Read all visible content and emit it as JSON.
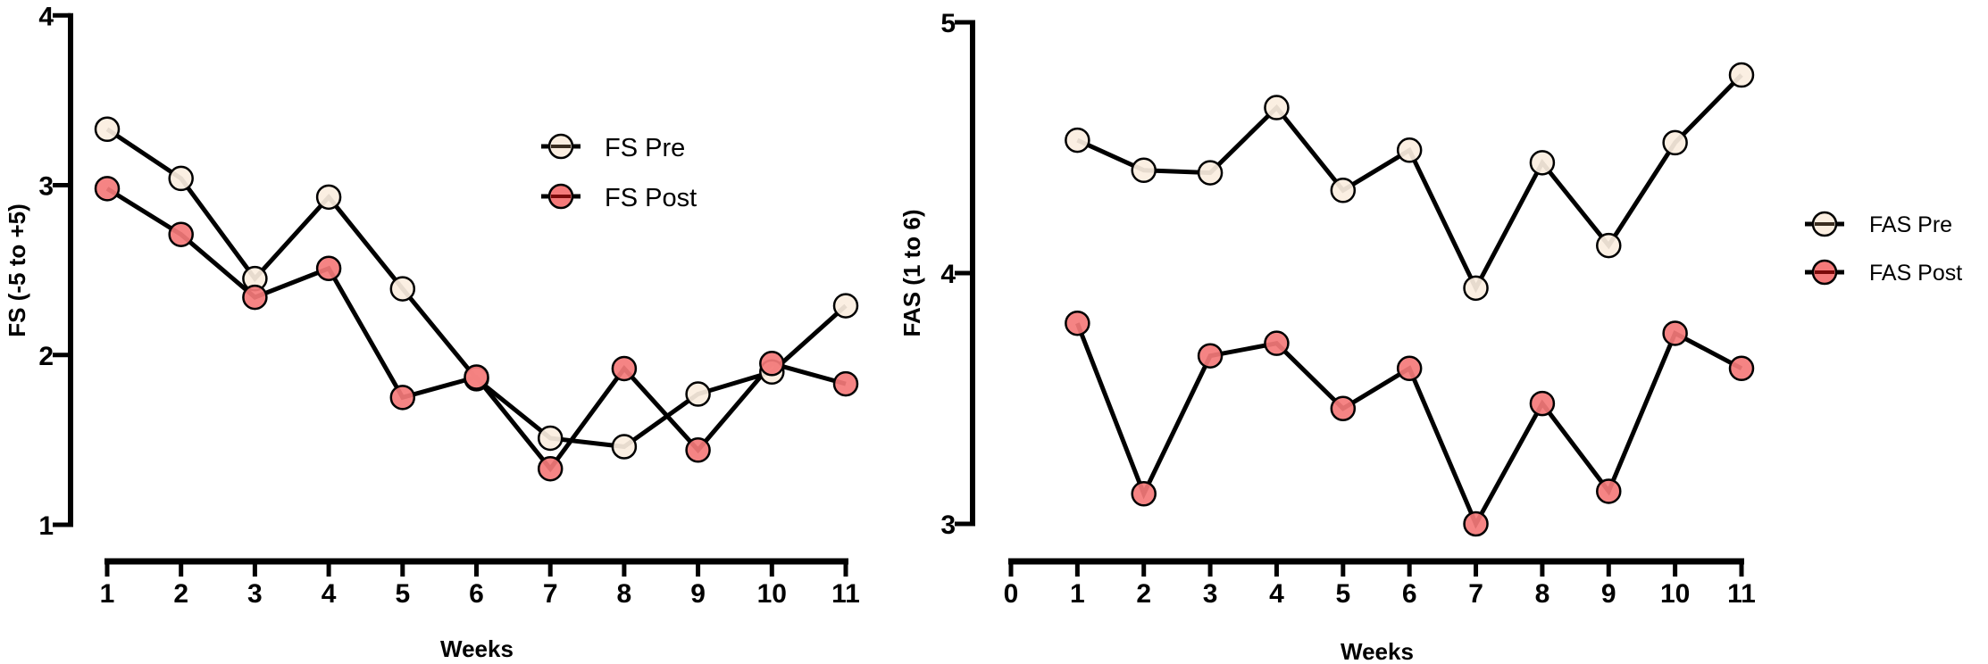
{
  "chart_data": [
    {
      "type": "line",
      "title": "",
      "xlabel": "Weeks",
      "ylabel": "FS (-5 to +5)",
      "x": [
        1,
        2,
        3,
        4,
        5,
        6,
        7,
        8,
        9,
        10,
        11
      ],
      "xlim": [
        1,
        11
      ],
      "xticks": [
        "1",
        "2",
        "3",
        "4",
        "5",
        "6",
        "7",
        "8",
        "9",
        "10",
        "11"
      ],
      "ylim": [
        1,
        4
      ],
      "yticks": [
        "1",
        "2",
        "3",
        "4"
      ],
      "grid": false,
      "legend_position": "top-right",
      "series": [
        {
          "name": "FS Pre",
          "color": "#fbeee0",
          "values": [
            3.33,
            3.04,
            2.45,
            2.93,
            2.39,
            1.86,
            1.51,
            1.46,
            1.77,
            1.9,
            2.29
          ]
        },
        {
          "name": "FS Post",
          "color": "#f47a7a",
          "values": [
            2.98,
            2.71,
            2.34,
            2.51,
            1.75,
            1.87,
            1.33,
            1.92,
            1.44,
            1.95,
            1.83
          ]
        }
      ]
    },
    {
      "type": "line",
      "title": "",
      "xlabel": "Weeks",
      "ylabel": "FAS (1 to 6)",
      "x": [
        1,
        2,
        3,
        4,
        5,
        6,
        7,
        8,
        9,
        10,
        11
      ],
      "xlim": [
        0,
        11
      ],
      "xticks": [
        "0",
        "1",
        "2",
        "3",
        "4",
        "5",
        "6",
        "7",
        "8",
        "9",
        "10",
        "11"
      ],
      "ylim": [
        3,
        5
      ],
      "yticks": [
        "3",
        "4",
        "5"
      ],
      "grid": false,
      "legend_position": "right",
      "series": [
        {
          "name": "FAS Pre",
          "color": "#fbeee0",
          "values": [
            4.53,
            4.41,
            4.4,
            4.66,
            4.33,
            4.49,
            3.94,
            4.44,
            4.11,
            4.52,
            4.79
          ]
        },
        {
          "name": "FAS Post",
          "color": "#f47a7a",
          "values": [
            3.8,
            3.12,
            3.67,
            3.72,
            3.46,
            3.62,
            3.0,
            3.48,
            3.13,
            3.76,
            3.62
          ]
        }
      ]
    }
  ]
}
